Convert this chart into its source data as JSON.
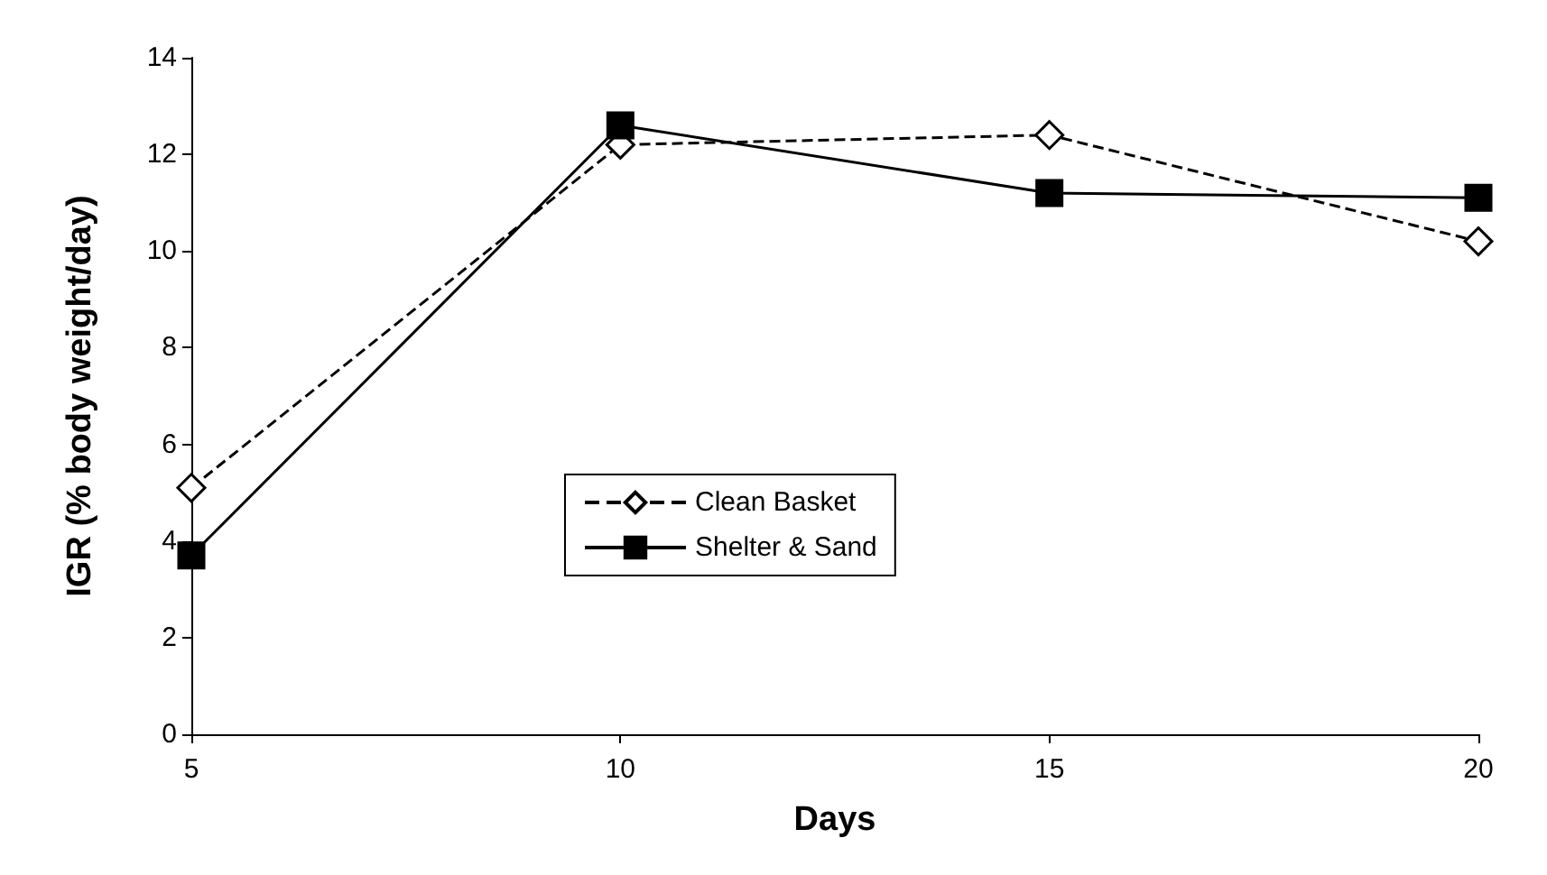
{
  "chart_data": {
    "type": "line",
    "xlabel": "Days",
    "ylabel": "IGR (% body weight/day)",
    "x": [
      5,
      10,
      15,
      20
    ],
    "series": [
      {
        "name": "Clean Basket",
        "color": "#000000",
        "values": [
          5.1,
          12.2,
          12.4,
          10.2
        ],
        "marker": "diamond",
        "line_style": "dashed"
      },
      {
        "name": "Shelter & Sand",
        "color": "#000000",
        "values": [
          3.7,
          12.6,
          11.2,
          11.1
        ],
        "marker": "square",
        "line_style": "solid"
      }
    ],
    "xlim": [
      5,
      20
    ],
    "xticks": [
      5,
      10,
      15,
      20
    ],
    "ylim": [
      0,
      14
    ],
    "yticks": [
      0,
      2,
      4,
      6,
      8,
      10,
      12,
      14
    ],
    "grid": false,
    "legend": "bottom"
  }
}
